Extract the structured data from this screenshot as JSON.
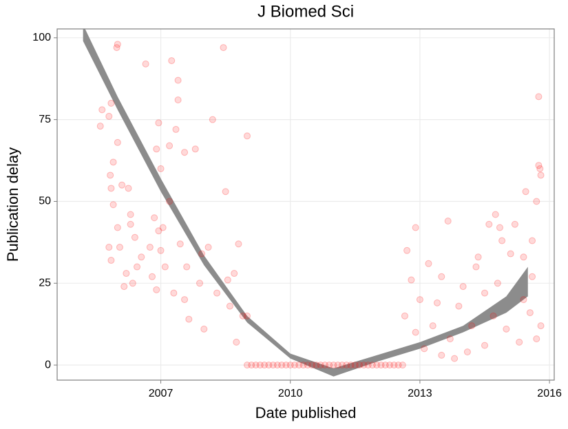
{
  "chart_data": {
    "type": "scatter",
    "title": "J Biomed Sci",
    "xlabel": "Date published",
    "ylabel": "Publication delay",
    "x": [
      2005.64,
      2005.6,
      2005.85,
      2005.8,
      2005.85,
      2005.8,
      2005.85,
      2005.83,
      2005.98,
      2006.0,
      2005.9,
      2005.9,
      2006.0,
      2006.0,
      2006.05,
      2006.1,
      2006.15,
      2006.2,
      2006.3,
      2006.3,
      2006.25,
      2006.35,
      2006.4,
      2006.45,
      2006.55,
      2006.65,
      2006.75,
      2006.8,
      2006.85,
      2006.9,
      2007.0,
      2006.95,
      2006.9,
      2006.95,
      2007.0,
      2007.05,
      2007.1,
      2007.2,
      2007.2,
      2007.25,
      2007.3,
      2007.35,
      2007.4,
      2007.4,
      2007.45,
      2007.55,
      2007.55,
      2007.6,
      2007.65,
      2007.8,
      2007.95,
      2007.9,
      2008.0,
      2008.1,
      2008.2,
      2008.3,
      2008.45,
      2008.5,
      2008.7,
      2008.75,
      2008.8,
      2008.55,
      2008.6,
      2008.9,
      2009.0,
      2009.0,
      2009.0,
      2009.1,
      2009.2,
      2009.3,
      2009.4,
      2009.5,
      2009.6,
      2009.7,
      2009.8,
      2009.9,
      2010.0,
      2010.1,
      2010.2,
      2010.3,
      2010.4,
      2010.5,
      2010.6,
      2010.7,
      2010.8,
      2010.9,
      2011.0,
      2011.1,
      2011.2,
      2011.3,
      2011.4,
      2011.5,
      2011.6,
      2011.7,
      2011.8,
      2011.9,
      2012.0,
      2012.1,
      2012.2,
      2012.3,
      2012.4,
      2012.5,
      2012.6,
      2012.65,
      2012.7,
      2012.8,
      2012.9,
      2013.0,
      2012.9,
      2013.1,
      2013.2,
      2013.3,
      2013.4,
      2013.5,
      2013.5,
      2013.65,
      2013.7,
      2013.8,
      2013.9,
      2014.0,
      2014.1,
      2014.2,
      2014.3,
      2014.35,
      2014.5,
      2014.5,
      2014.6,
      2014.7,
      2014.75,
      2014.8,
      2014.85,
      2014.9,
      2015.0,
      2015.1,
      2015.2,
      2015.3,
      2015.4,
      2015.45,
      2015.55,
      2015.6,
      2015.7,
      2015.75,
      2015.75,
      2015.78,
      2015.8,
      2015.8,
      2015.7,
      2015.6,
      2015.4
    ],
    "values": [
      78,
      73,
      80,
      76,
      54,
      36,
      32,
      58,
      97,
      98,
      62,
      49,
      68,
      42,
      36,
      55,
      24,
      28,
      43,
      46,
      54,
      25,
      39,
      30,
      33,
      92,
      36,
      27,
      45,
      23,
      35,
      41,
      66,
      74,
      60,
      42,
      30,
      67,
      50,
      93,
      22,
      72,
      87,
      81,
      37,
      65,
      20,
      30,
      14,
      66,
      34,
      25,
      11,
      36,
      75,
      22,
      97,
      53,
      28,
      7,
      37,
      26,
      18,
      15,
      70,
      15,
      0,
      0,
      0,
      0,
      0,
      0,
      0,
      0,
      0,
      0,
      0,
      0,
      0,
      0,
      0,
      0,
      0,
      0,
      0,
      0,
      0,
      0,
      0,
      0,
      0,
      0,
      0,
      0,
      0,
      0,
      0,
      0,
      0,
      0,
      0,
      0,
      0,
      15,
      35,
      26,
      10,
      20,
      42,
      5,
      31,
      12,
      19,
      3,
      27,
      44,
      8,
      2,
      18,
      24,
      4,
      12,
      30,
      33,
      22,
      6,
      43,
      15,
      46,
      25,
      42,
      38,
      11,
      34,
      43,
      7,
      33,
      53,
      16,
      38,
      50,
      61,
      82,
      60,
      58,
      12,
      8,
      27,
      20
    ],
    "color": "#ff0000",
    "band": {
      "x": [
        2005.2,
        2006,
        2007,
        2008,
        2009,
        2010,
        2011,
        2012,
        2013,
        2014,
        2015,
        2015.5
      ],
      "upper": [
        104,
        82,
        57,
        33.5,
        15,
        3.5,
        -1,
        3,
        7,
        12,
        21,
        30
      ],
      "lower": [
        99,
        78,
        53,
        30.5,
        13,
        2,
        -3.5,
        1,
        5,
        10,
        16,
        21
      ],
      "color": "#8c8c8c"
    },
    "xlim": [
      2004.6,
      2016.11
    ],
    "ylim": [
      -4.6,
      102.7
    ],
    "xticks": [
      2007,
      2010,
      2013,
      2016
    ],
    "yticks": [
      0,
      25,
      50,
      75,
      100
    ],
    "grid": true
  }
}
